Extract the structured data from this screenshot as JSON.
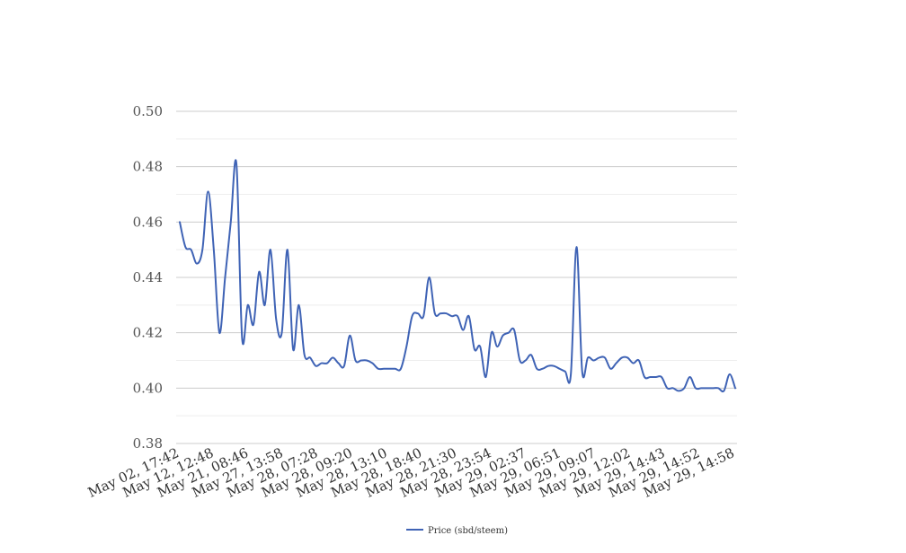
{
  "chart_data": {
    "type": "line",
    "title": "",
    "xlabel": "",
    "ylabel": "",
    "ylim": [
      0.38,
      0.5
    ],
    "yticks": [
      "0.38",
      "0.40",
      "0.42",
      "0.44",
      "0.46",
      "0.48",
      "0.50"
    ],
    "grid": true,
    "legend_position": "bottom",
    "colors": {
      "line": "#3f63b5",
      "major_grid": "#cccccc",
      "minor_grid": "#eeeeee"
    },
    "x_tick_labels": [
      "May 02, 17:42",
      "May 12, 12:48",
      "May 21, 08:46",
      "May 27, 13:58",
      "May 28, 07:28",
      "May 28, 09:20",
      "May 28, 13:10",
      "May 28, 18:40",
      "May 28, 21:30",
      "May 28, 23:54",
      "May 29, 02:37",
      "May 29, 06:51",
      "May 29, 09:07",
      "May 29, 12:02",
      "May 29, 14:43",
      "May 29, 14:52",
      "May 29, 14:58"
    ],
    "series": [
      {
        "name": "Price (sbd/steem)",
        "values": [
          0.46,
          0.451,
          0.45,
          0.445,
          0.45,
          0.471,
          0.45,
          0.42,
          0.44,
          0.46,
          0.481,
          0.418,
          0.43,
          0.423,
          0.442,
          0.43,
          0.45,
          0.425,
          0.42,
          0.45,
          0.414,
          0.43,
          0.412,
          0.411,
          0.408,
          0.409,
          0.409,
          0.411,
          0.409,
          0.408,
          0.419,
          0.41,
          0.41,
          0.41,
          0.409,
          0.407,
          0.407,
          0.407,
          0.407,
          0.407,
          0.415,
          0.426,
          0.427,
          0.426,
          0.44,
          0.427,
          0.427,
          0.427,
          0.426,
          0.426,
          0.421,
          0.426,
          0.414,
          0.415,
          0.404,
          0.42,
          0.415,
          0.419,
          0.42,
          0.421,
          0.41,
          0.41,
          0.412,
          0.407,
          0.407,
          0.408,
          0.408,
          0.407,
          0.406,
          0.405,
          0.451,
          0.406,
          0.411,
          0.41,
          0.411,
          0.411,
          0.407,
          0.409,
          0.411,
          0.411,
          0.409,
          0.41,
          0.404,
          0.404,
          0.404,
          0.404,
          0.4,
          0.4,
          0.399,
          0.4,
          0.404,
          0.4,
          0.4,
          0.4,
          0.4,
          0.4,
          0.399,
          0.405,
          0.4
        ]
      }
    ]
  }
}
